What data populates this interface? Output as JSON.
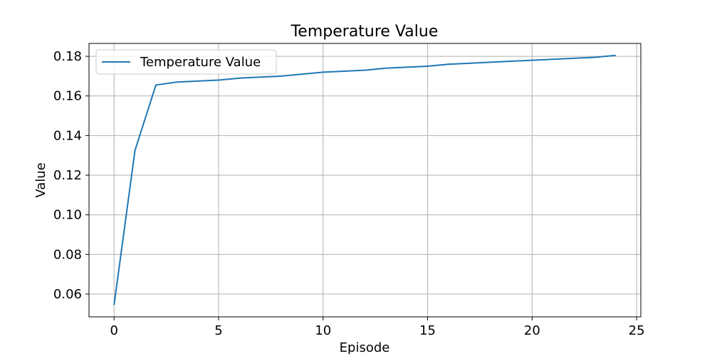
{
  "chart_data": {
    "type": "line",
    "title": "Temperature Value",
    "xlabel": "Episode",
    "ylabel": "Value",
    "xlim": [
      -1.2,
      25.2
    ],
    "ylim": [
      0.0485,
      0.1865
    ],
    "xticks": [
      0,
      5,
      10,
      15,
      20,
      25
    ],
    "xtick_labels": [
      "0",
      "5",
      "10",
      "15",
      "20",
      "25"
    ],
    "yticks": [
      0.06,
      0.08,
      0.1,
      0.12,
      0.14,
      0.16,
      0.18
    ],
    "ytick_labels": [
      "0.06",
      "0.08",
      "0.10",
      "0.12",
      "0.14",
      "0.16",
      "0.18"
    ],
    "grid": true,
    "legend": "top-left",
    "series": [
      {
        "name": "Temperature Value",
        "color": "#1f77b4",
        "x": [
          0,
          1,
          2,
          3,
          4,
          5,
          6,
          7,
          8,
          9,
          10,
          11,
          12,
          13,
          14,
          15,
          16,
          17,
          18,
          19,
          20,
          21,
          22,
          23,
          24
        ],
        "y": [
          0.0545,
          0.1325,
          0.1655,
          0.167,
          0.1675,
          0.168,
          0.169,
          0.1695,
          0.17,
          0.171,
          0.172,
          0.1725,
          0.173,
          0.174,
          0.1745,
          0.175,
          0.176,
          0.1765,
          0.177,
          0.1775,
          0.178,
          0.1785,
          0.179,
          0.1795,
          0.1805
        ]
      }
    ]
  }
}
